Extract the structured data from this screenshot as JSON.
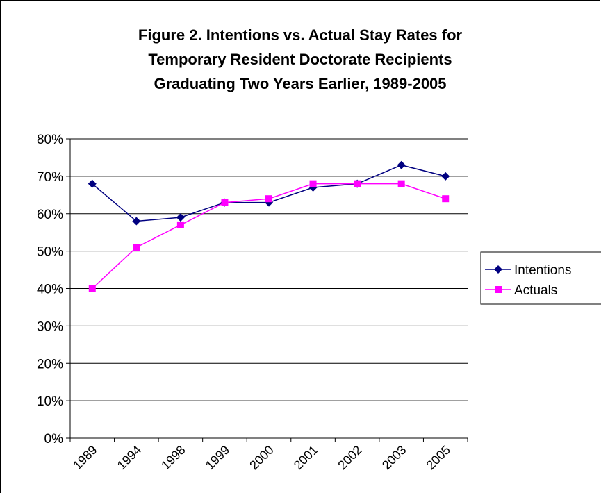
{
  "chart_data": {
    "type": "line",
    "title": [
      "Figure 2.  Intentions vs. Actual Stay Rates for",
      "Temporary Resident Doctorate Recipients",
      "Graduating Two Years Earlier, 1989-2005"
    ],
    "categories": [
      "1989",
      "1994",
      "1998",
      "1999",
      "2000",
      "2001",
      "2002",
      "2003",
      "2005"
    ],
    "series": [
      {
        "name": "Intentions",
        "color": "#000080",
        "marker": "diamond",
        "values": [
          68,
          58,
          59,
          63,
          63,
          67,
          68,
          73,
          70
        ]
      },
      {
        "name": "Actuals",
        "color": "#ff00ff",
        "marker": "square",
        "values": [
          40,
          51,
          57,
          63,
          64,
          68,
          68,
          68,
          64
        ]
      }
    ],
    "ylim": [
      0,
      80
    ],
    "yticks": [
      {
        "value": 0,
        "label": "0%"
      },
      {
        "value": 10,
        "label": "10%"
      },
      {
        "value": 20,
        "label": "20%"
      },
      {
        "value": 30,
        "label": "30%"
      },
      {
        "value": 40,
        "label": "40%"
      },
      {
        "value": 50,
        "label": "50%"
      },
      {
        "value": 60,
        "label": "60%"
      },
      {
        "value": 70,
        "label": "70%"
      },
      {
        "value": 80,
        "label": "80%"
      }
    ],
    "grid": true,
    "legend": "right"
  }
}
